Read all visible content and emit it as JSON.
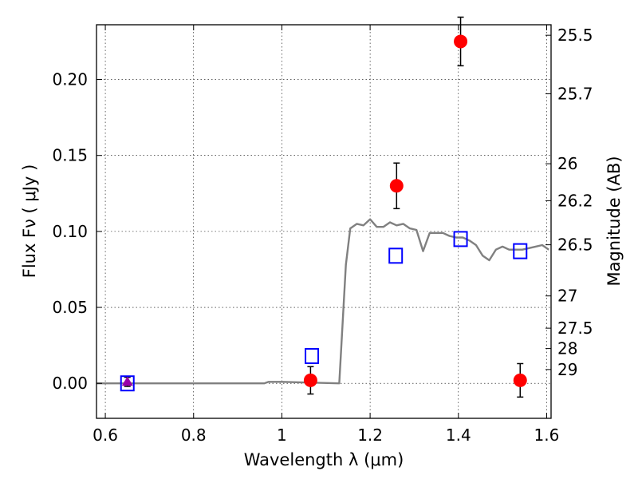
{
  "chart_data": {
    "type": "scatter",
    "title": "",
    "xlabel": "Wavelength  λ (μm)",
    "ylabel": "Flux  Fν  ( μJy )",
    "y2label": "Magnitude (AB)",
    "xlim": [
      0.58,
      1.61
    ],
    "ylim": [
      -0.023,
      0.236
    ],
    "grid": true,
    "x_ticks": [
      0.6,
      0.8,
      1.0,
      1.2,
      1.4,
      1.6
    ],
    "x_tick_labels": [
      "0.6",
      "0.8",
      "1",
      "1.2",
      "1.4",
      "1.6"
    ],
    "y_ticks": [
      0.0,
      0.05,
      0.1,
      0.15,
      0.2
    ],
    "y_tick_labels": [
      "0.00",
      "0.05",
      "0.10",
      "0.15",
      "0.20"
    ],
    "magnitude_ticks": [
      "25.5",
      "25.7",
      "26",
      "26.2",
      "26.5",
      "27",
      "27.5",
      "28",
      "29"
    ],
    "series": [
      {
        "kind": "line",
        "color": "#808080",
        "points": [
          [
            0.58,
            0.0
          ],
          [
            0.96,
            0.0
          ],
          [
            0.97,
            0.001
          ],
          [
            1.0,
            0.001
          ],
          [
            1.13,
            0.0
          ],
          [
            1.145,
            0.078
          ],
          [
            1.155,
            0.102
          ],
          [
            1.17,
            0.105
          ],
          [
            1.185,
            0.104
          ],
          [
            1.2,
            0.108
          ],
          [
            1.215,
            0.103
          ],
          [
            1.23,
            0.103
          ],
          [
            1.245,
            0.106
          ],
          [
            1.26,
            0.104
          ],
          [
            1.275,
            0.105
          ],
          [
            1.29,
            0.102
          ],
          [
            1.305,
            0.101
          ],
          [
            1.32,
            0.087
          ],
          [
            1.335,
            0.099
          ],
          [
            1.35,
            0.099
          ],
          [
            1.365,
            0.099
          ],
          [
            1.38,
            0.097
          ],
          [
            1.395,
            0.096
          ],
          [
            1.41,
            0.096
          ],
          [
            1.425,
            0.094
          ],
          [
            1.44,
            0.091
          ],
          [
            1.455,
            0.084
          ],
          [
            1.47,
            0.081
          ],
          [
            1.485,
            0.088
          ],
          [
            1.5,
            0.09
          ],
          [
            1.515,
            0.088
          ],
          [
            1.53,
            0.088
          ],
          [
            1.545,
            0.088
          ],
          [
            1.56,
            0.089
          ],
          [
            1.575,
            0.09
          ],
          [
            1.59,
            0.091
          ],
          [
            1.605,
            0.088
          ]
        ]
      },
      {
        "kind": "points",
        "marker": "circle",
        "color": "#ff0000",
        "points": [
          {
            "x": 1.065,
            "y": 0.002,
            "err": 0.009
          },
          {
            "x": 1.26,
            "y": 0.13,
            "err": 0.015
          },
          {
            "x": 1.405,
            "y": 0.225,
            "err": 0.016
          },
          {
            "x": 1.54,
            "y": 0.002,
            "err": 0.011
          }
        ]
      },
      {
        "kind": "points",
        "marker": "triangle",
        "color": "#9900aa",
        "points": [
          {
            "x": 0.65,
            "y": 0.001,
            "err": 0.003
          }
        ]
      },
      {
        "kind": "points",
        "marker": "square-open",
        "color": "#0000ff",
        "points": [
          {
            "x": 0.65,
            "y": 0.0
          },
          {
            "x": 1.068,
            "y": 0.018
          },
          {
            "x": 1.258,
            "y": 0.084
          },
          {
            "x": 1.405,
            "y": 0.095
          },
          {
            "x": 1.54,
            "y": 0.087
          }
        ]
      }
    ]
  }
}
